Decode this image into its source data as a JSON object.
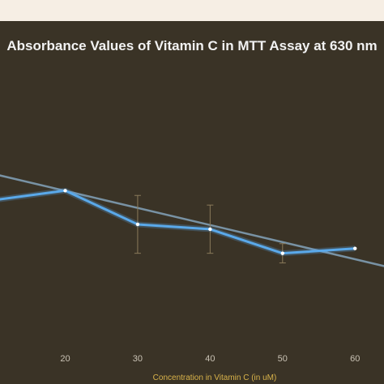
{
  "chart_data": {
    "type": "line",
    "title": "Absorbance Values of Vitamin C in MTT Assay at 630 nm",
    "xlabel": "Concentration in Vitamin C (in uM)",
    "ylabel": "",
    "x_ticks": [
      20,
      30,
      40,
      50,
      60
    ],
    "xlim": [
      11,
      64
    ],
    "ylim": [
      0.3,
      0.72
    ],
    "grid": false,
    "legend": "none",
    "series": [
      {
        "x": [
          10,
          20,
          30,
          40,
          50,
          60
        ],
        "values": [
          0.55,
          0.57,
          0.5,
          0.49,
          0.44,
          0.45
        ],
        "error": [
          0,
          0,
          0.06,
          0.05,
          0.02,
          0
        ],
        "color": "#5aa9ea"
      }
    ],
    "trendline": {
      "x": [
        10,
        65
      ],
      "values": [
        0.605,
        0.41
      ],
      "color": "#7f9db2"
    }
  }
}
